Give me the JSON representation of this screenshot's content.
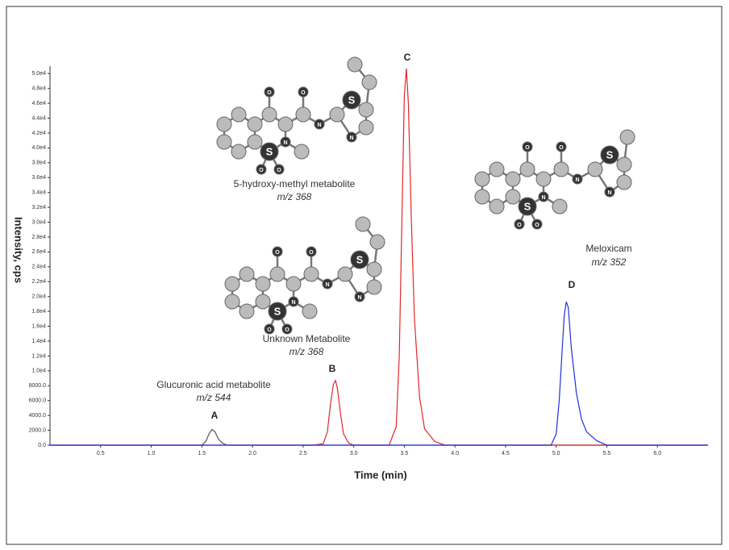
{
  "chart_data": {
    "type": "line",
    "x_label": "Time (min)",
    "y_label": "Intensity, cps",
    "xlim": [
      0,
      6.5
    ],
    "ylim": [
      0,
      51000
    ],
    "xticks": [
      0.5,
      {
        "value": 1,
        "label": "1.0"
      },
      1.5,
      {
        "value": 2,
        "label": "2.0"
      },
      2.5,
      {
        "value": 3,
        "label": "3.0"
      },
      3.5,
      {
        "value": 4,
        "label": "4.0"
      },
      4.5,
      {
        "value": 5,
        "label": "5.0"
      },
      5.5,
      {
        "value": 6,
        "label": "6.0"
      }
    ],
    "yticks": [
      {
        "value": 0,
        "label": "0.0"
      },
      {
        "value": 2000,
        "label": "2000.0"
      },
      {
        "value": 4000,
        "label": "4000.0"
      },
      {
        "value": 6000,
        "label": "6000.0"
      },
      {
        "value": 8000,
        "label": "8000.0"
      },
      {
        "value": 10000,
        "label": "1.0e4"
      },
      {
        "value": 12000,
        "label": "1.2e4"
      },
      {
        "value": 14000,
        "label": "1.4e4"
      },
      {
        "value": 16000,
        "label": "1.6e4"
      },
      {
        "value": 18000,
        "label": "1.8e4"
      },
      {
        "value": 20000,
        "label": "2.0e4"
      },
      {
        "value": 22000,
        "label": "2.2e4"
      },
      {
        "value": 24000,
        "label": "2.4e4"
      },
      {
        "value": 26000,
        "label": "2.6e4"
      },
      {
        "value": 28000,
        "label": "2.8e4"
      },
      {
        "value": 30000,
        "label": "3.0e4"
      },
      {
        "value": 32000,
        "label": "3.2e4"
      },
      {
        "value": 34000,
        "label": "3.4e4"
      },
      {
        "value": 36000,
        "label": "3.6e4"
      },
      {
        "value": 38000,
        "label": "3.8e4"
      },
      {
        "value": 40000,
        "label": "4.0e4"
      },
      {
        "value": 42000,
        "label": "4.2e4"
      },
      {
        "value": 44000,
        "label": "4.4e4"
      },
      {
        "value": 46000,
        "label": "4.6e4"
      },
      {
        "value": 48000,
        "label": "4.8e4"
      },
      {
        "value": 50000,
        "label": "5.0e4"
      }
    ],
    "grid": false,
    "series": [
      {
        "color": "#555555",
        "x": [
          0,
          1.5,
          1.54,
          1.57,
          1.6,
          1.63,
          1.66,
          1.7,
          1.75,
          6.5
        ],
        "values": [
          0,
          0,
          500,
          1500,
          2100,
          1800,
          900,
          300,
          0,
          0
        ]
      },
      {
        "color": "#e02828",
        "x": [
          0,
          2.6,
          2.7,
          2.74,
          2.77,
          2.8,
          2.82,
          2.84,
          2.87,
          2.9,
          2.95,
          3.0,
          3.35,
          3.42,
          3.45,
          3.48,
          3.5,
          3.52,
          3.54,
          3.57,
          3.6,
          3.65,
          3.7,
          3.8,
          3.9,
          6.5
        ],
        "values": [
          0,
          0,
          200,
          1800,
          5500,
          8200,
          8700,
          7600,
          4200,
          1500,
          300,
          0,
          0,
          2500,
          12000,
          33000,
          47000,
          50700,
          46000,
          30000,
          17000,
          6500,
          2200,
          500,
          0,
          0
        ]
      },
      {
        "color": "#2030e0",
        "x": [
          0,
          4.95,
          5.0,
          5.03,
          5.06,
          5.08,
          5.1,
          5.12,
          5.15,
          5.2,
          5.25,
          5.3,
          5.4,
          5.5,
          6.5
        ],
        "values": [
          0,
          0,
          1500,
          6000,
          13000,
          17500,
          19300,
          18500,
          13000,
          7000,
          3500,
          1800,
          600,
          0,
          0
        ]
      }
    ],
    "peak_labels": [
      "A",
      "B",
      "C",
      "D"
    ],
    "compounds": [
      {
        "name": "5-hydroxy-methyl metabolite",
        "mz": "m/z 368"
      },
      {
        "name": "Unknown Metabolite",
        "mz": "m/z 368"
      },
      {
        "name": "Glucuronic acid metabolite",
        "mz": "m/z 544"
      },
      {
        "name": "Meloxicam",
        "mz": "m/z 352"
      }
    ],
    "atom_labels": [
      "S",
      "N",
      "O"
    ]
  }
}
